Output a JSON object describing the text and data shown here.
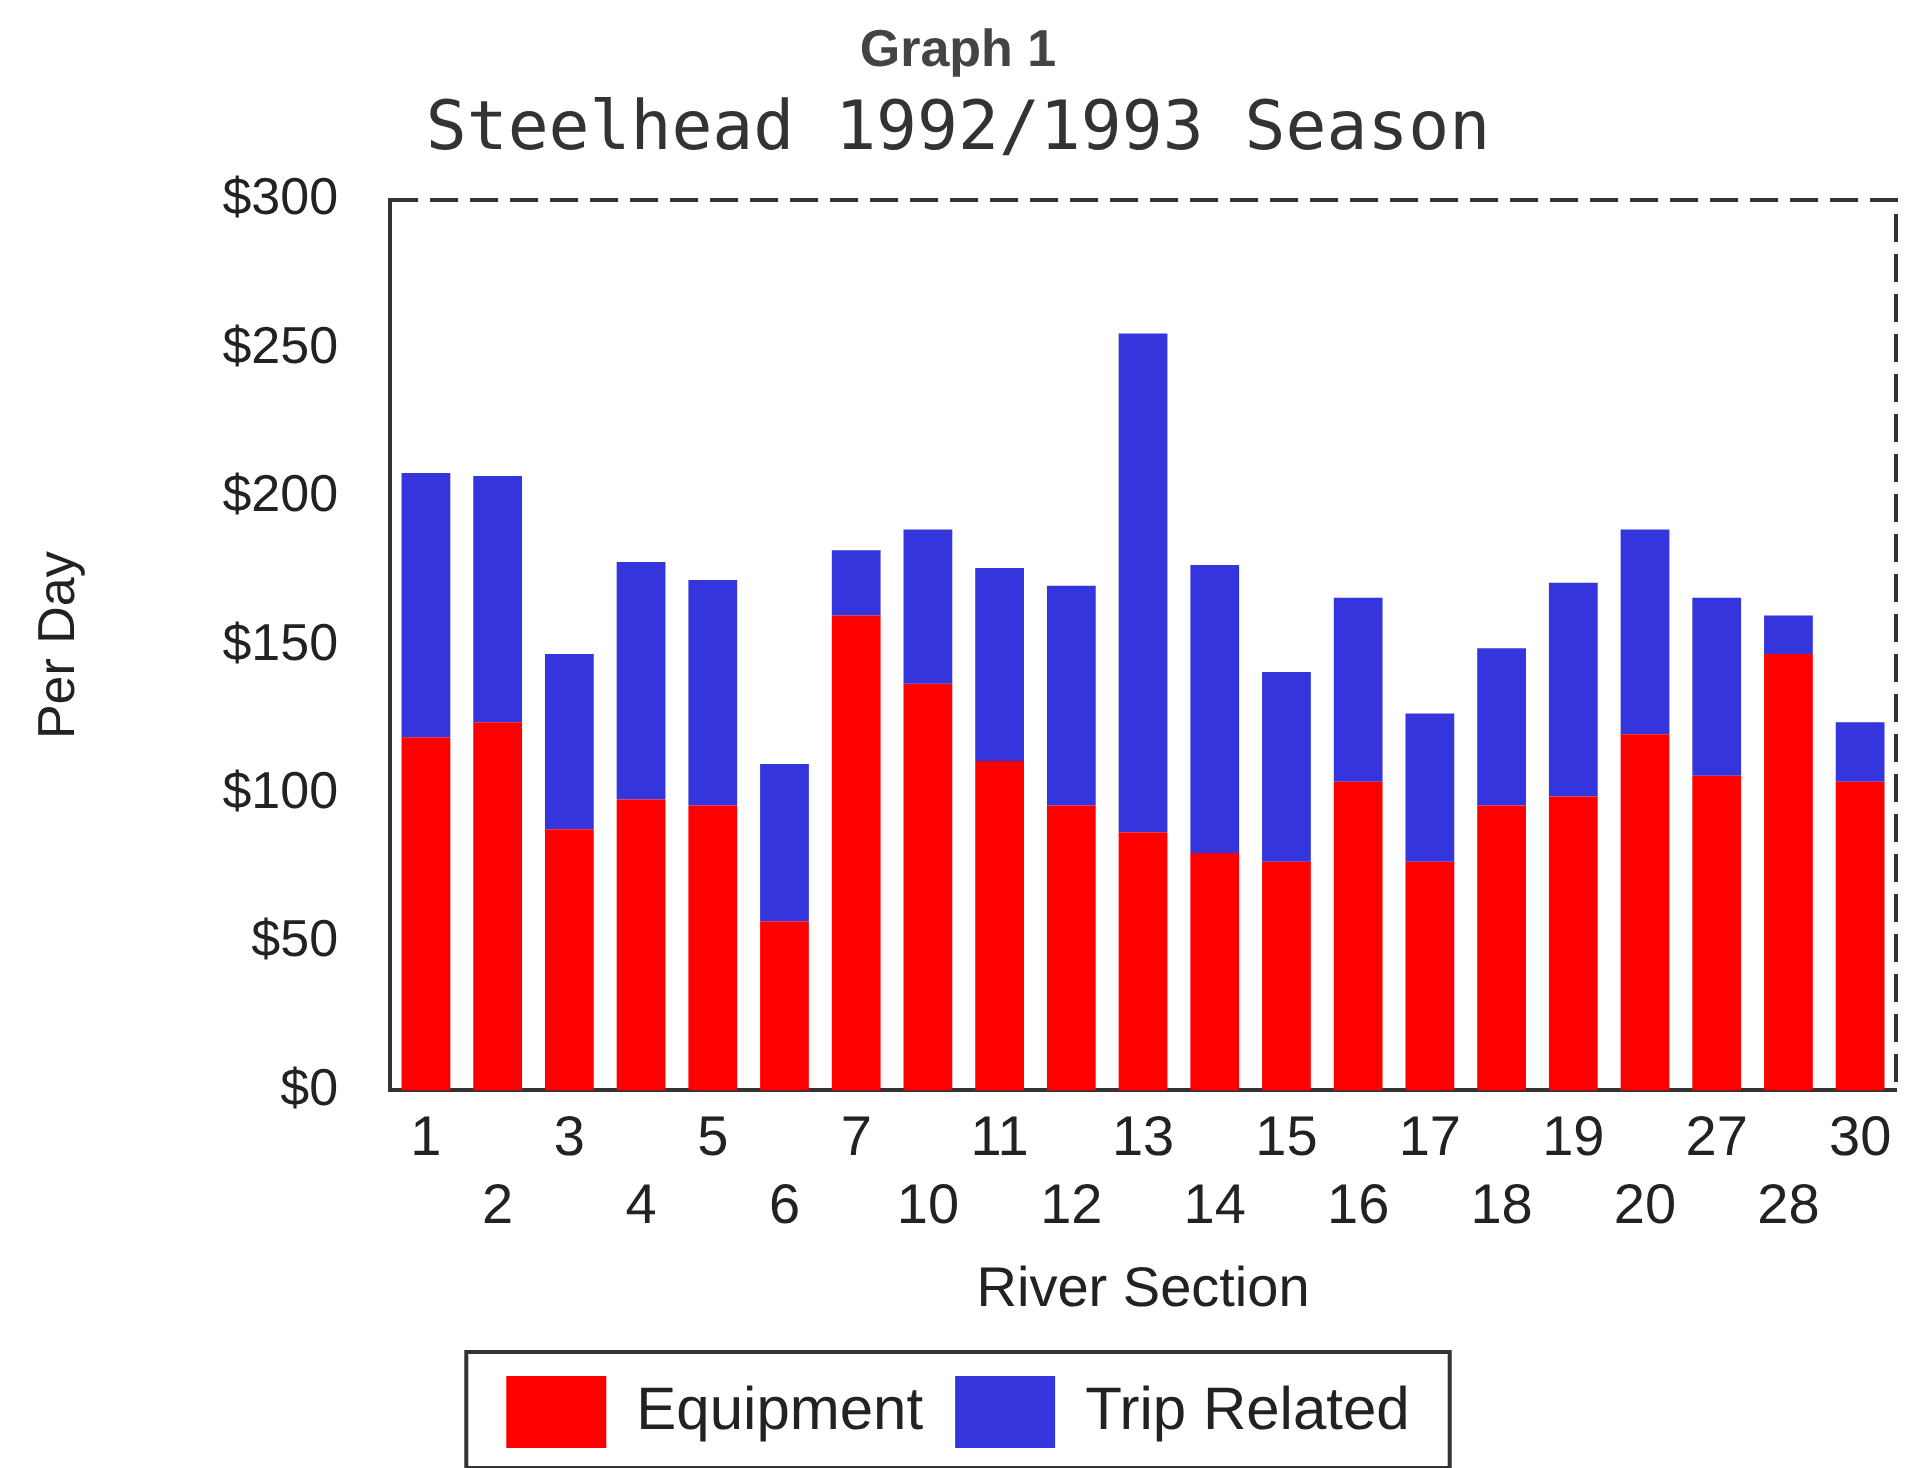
{
  "chart_data": {
    "type": "bar",
    "title": "Graph 1",
    "subtitle": "Steelhead 1992/1993 Season",
    "xlabel": "River Section",
    "ylabel": "Per Day",
    "categories": [
      "1",
      "2",
      "3",
      "4",
      "5",
      "6",
      "7",
      "10",
      "11",
      "12",
      "13",
      "14",
      "15",
      "16",
      "17",
      "18",
      "19",
      "20",
      "27",
      "28",
      "30"
    ],
    "stacked": true,
    "series": [
      {
        "name": "Equipment",
        "color": "#ff0000",
        "values": [
          119,
          124,
          88,
          98,
          96,
          57,
          160,
          137,
          111,
          96,
          87,
          80,
          77,
          104,
          77,
          96,
          99,
          120,
          106,
          147,
          104
        ]
      },
      {
        "name": "Trip Related",
        "color": "#3535dd",
        "values": [
          89,
          83,
          59,
          80,
          76,
          53,
          22,
          52,
          65,
          74,
          168,
          97,
          64,
          62,
          50,
          53,
          72,
          69,
          60,
          13,
          20
        ]
      }
    ],
    "ylim": [
      0,
      300
    ],
    "yticks": [
      {
        "value": 0,
        "label": "$0"
      },
      {
        "value": 50,
        "label": "$50"
      },
      {
        "value": 100,
        "label": "$100"
      },
      {
        "value": 150,
        "label": "$150"
      },
      {
        "value": 200,
        "label": "$200"
      },
      {
        "value": 250,
        "label": "$250"
      },
      {
        "value": 300,
        "label": "$300"
      }
    ],
    "grid": false,
    "legend": "bottom"
  }
}
